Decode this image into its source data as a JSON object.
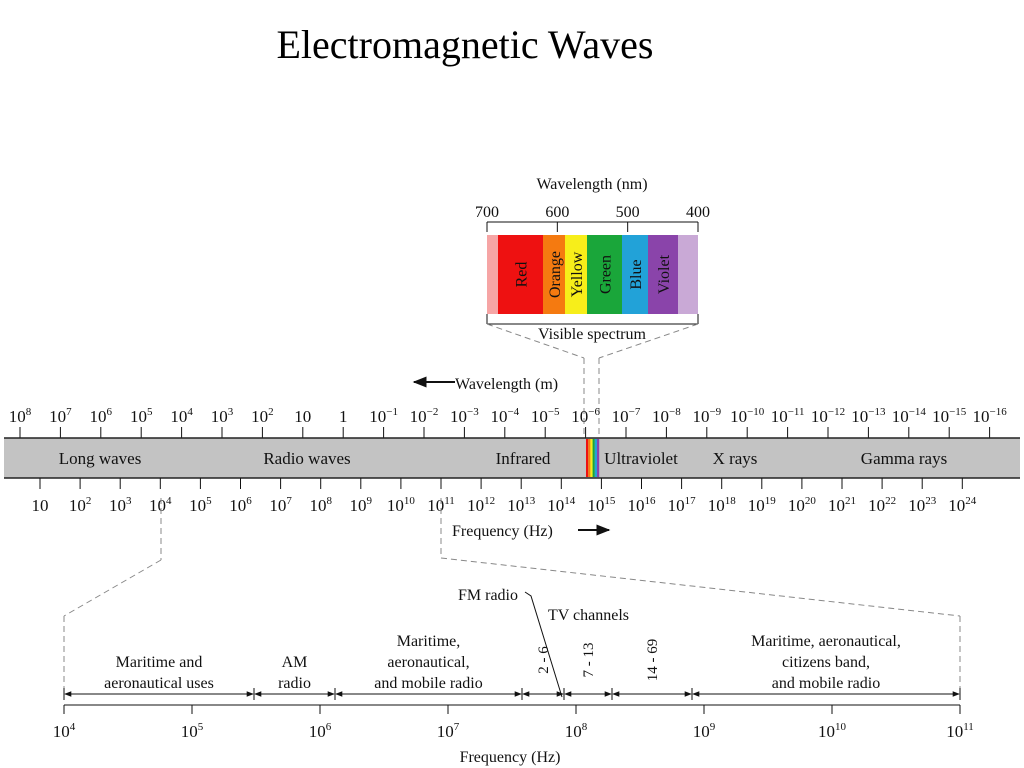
{
  "title": "Electromagnetic Waves",
  "visible": {
    "axis_label": "Wavelength (nm)",
    "ticks": [
      "700",
      "600",
      "500",
      "400"
    ],
    "bands": [
      {
        "label": "Red",
        "color": "#ee1111"
      },
      {
        "label": "Orange",
        "color": "#f57a10"
      },
      {
        "label": "Yellow",
        "color": "#f7ee1a"
      },
      {
        "label": "Green",
        "color": "#1aa63a"
      },
      {
        "label": "Blue",
        "color": "#22a2d8"
      },
      {
        "label": "Violet",
        "color": "#8a44aa"
      }
    ],
    "caption": "Visible spectrum"
  },
  "main": {
    "wavelength_label": "Wavelength (m)",
    "frequency_label": "Frequency (Hz)",
    "wavelength_ticks": [
      {
        "base": "10",
        "exp": "8"
      },
      {
        "base": "10",
        "exp": "7"
      },
      {
        "base": "10",
        "exp": "6"
      },
      {
        "base": "10",
        "exp": "5"
      },
      {
        "base": "10",
        "exp": "4"
      },
      {
        "base": "10",
        "exp": "3"
      },
      {
        "base": "10",
        "exp": "2"
      },
      {
        "base": "10",
        "exp": ""
      },
      {
        "base": "1",
        "exp": ""
      },
      {
        "base": "10",
        "exp": "−1"
      },
      {
        "base": "10",
        "exp": "−2"
      },
      {
        "base": "10",
        "exp": "−3"
      },
      {
        "base": "10",
        "exp": "−4"
      },
      {
        "base": "10",
        "exp": "−5"
      },
      {
        "base": "10",
        "exp": "−6"
      },
      {
        "base": "10",
        "exp": "−7"
      },
      {
        "base": "10",
        "exp": "−8"
      },
      {
        "base": "10",
        "exp": "−9"
      },
      {
        "base": "10",
        "exp": "−10"
      },
      {
        "base": "10",
        "exp": "−11"
      },
      {
        "base": "10",
        "exp": "−12"
      },
      {
        "base": "10",
        "exp": "−13"
      },
      {
        "base": "10",
        "exp": "−14"
      },
      {
        "base": "10",
        "exp": "−15"
      },
      {
        "base": "10",
        "exp": "−16"
      }
    ],
    "frequency_ticks": [
      {
        "base": "10",
        "exp": ""
      },
      {
        "base": "10",
        "exp": "2"
      },
      {
        "base": "10",
        "exp": "3"
      },
      {
        "base": "10",
        "exp": "4"
      },
      {
        "base": "10",
        "exp": "5"
      },
      {
        "base": "10",
        "exp": "6"
      },
      {
        "base": "10",
        "exp": "7"
      },
      {
        "base": "10",
        "exp": "8"
      },
      {
        "base": "10",
        "exp": "9"
      },
      {
        "base": "10",
        "exp": "10"
      },
      {
        "base": "10",
        "exp": "11"
      },
      {
        "base": "10",
        "exp": "12"
      },
      {
        "base": "10",
        "exp": "13"
      },
      {
        "base": "10",
        "exp": "14"
      },
      {
        "base": "10",
        "exp": "15"
      },
      {
        "base": "10",
        "exp": "16"
      },
      {
        "base": "10",
        "exp": "17"
      },
      {
        "base": "10",
        "exp": "18"
      },
      {
        "base": "10",
        "exp": "19"
      },
      {
        "base": "10",
        "exp": "20"
      },
      {
        "base": "10",
        "exp": "21"
      },
      {
        "base": "10",
        "exp": "22"
      },
      {
        "base": "10",
        "exp": "23"
      },
      {
        "base": "10",
        "exp": "24"
      }
    ],
    "regions": [
      {
        "label": "Long waves"
      },
      {
        "label": "Radio waves"
      },
      {
        "label": "Infrared"
      },
      {
        "label": "Ultraviolet"
      },
      {
        "label": "X rays"
      },
      {
        "label": "Gamma rays"
      }
    ],
    "band_color": "#c3c3c3"
  },
  "radio": {
    "frequency_label": "Frequency (Hz)",
    "fm_label": "FM radio",
    "tv_label": "TV channels",
    "ticks": [
      {
        "base": "10",
        "exp": "4"
      },
      {
        "base": "10",
        "exp": "5"
      },
      {
        "base": "10",
        "exp": "6"
      },
      {
        "base": "10",
        "exp": "7"
      },
      {
        "base": "10",
        "exp": "8"
      },
      {
        "base": "10",
        "exp": "9"
      },
      {
        "base": "10",
        "exp": "10"
      },
      {
        "base": "10",
        "exp": "11"
      }
    ],
    "bands": [
      {
        "lines": [
          "Maritime and",
          "aeronautical uses"
        ]
      },
      {
        "lines": [
          "AM",
          "radio"
        ]
      },
      {
        "lines": [
          "Maritime,",
          "aeronautical,",
          "and mobile radio"
        ]
      },
      {
        "lines": [
          "2 - 6"
        ]
      },
      {
        "lines": [
          "7 - 13"
        ]
      },
      {
        "lines": [
          "14 - 69"
        ]
      },
      {
        "lines": [
          "Maritime, aeronautical,",
          "citizens band,",
          "and mobile radio"
        ]
      }
    ]
  }
}
